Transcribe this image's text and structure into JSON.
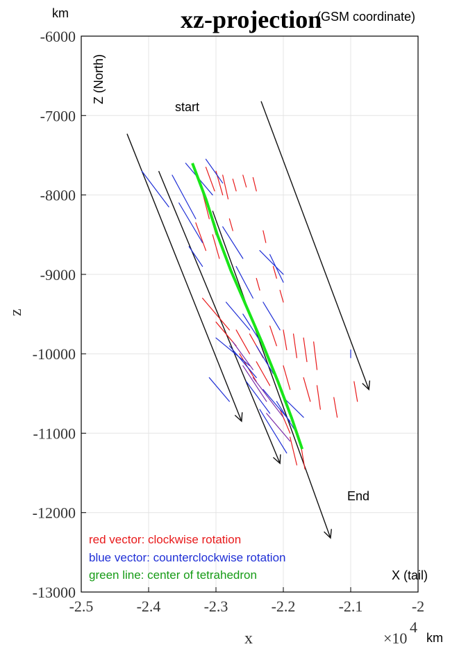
{
  "chart_data": {
    "type": "line",
    "title": "xz-projection",
    "title_note": "(GSM coordinate)",
    "xlabel": "x",
    "ylabel": "z",
    "x_unit": "km",
    "y_unit": "km",
    "x_multiplier": "×10",
    "x_multiplier_exp": "4",
    "xlim": [
      -2.5,
      -2.0
    ],
    "ylim": [
      -13000,
      -6000
    ],
    "xticks": [
      "-2.5",
      "-2.4",
      "-2.3",
      "-2.2",
      "-2.1",
      "-2"
    ],
    "xtick_values": [
      -2.5,
      -2.4,
      -2.3,
      -2.2,
      -2.1,
      -2.0
    ],
    "yticks": [
      "-6000",
      "-7000",
      "-8000",
      "-9000",
      "-10000",
      "-11000",
      "-12000",
      "-13000"
    ],
    "ytick_values": [
      -6000,
      -7000,
      -8000,
      -9000,
      -10000,
      -11000,
      -12000,
      -13000
    ],
    "grid": true,
    "annotations": {
      "z_north": "Z (North)",
      "start": "start",
      "end": "End",
      "x_tail": "X (tail)"
    },
    "legend": [
      {
        "label": "red vector: clockwise rotation",
        "color": "#e8191a"
      },
      {
        "label": "blue vector: counterclockwise rotation",
        "color": "#1f2fd6"
      },
      {
        "label": "green line: center of tetrahedron",
        "color": "#169b16"
      }
    ],
    "colors": {
      "red": "#e8191a",
      "blue": "#1f2fd6",
      "purple": "#7a2aa8",
      "green": "#19e619",
      "black": "#111111",
      "grid": "#e4e4e4"
    },
    "trajectories": [
      {
        "x": [
          -2.432,
          -2.262
        ],
        "z": [
          -7230,
          -10850
        ]
      },
      {
        "x": [
          -2.385,
          -2.205
        ],
        "z": [
          -7700,
          -11380
        ]
      },
      {
        "x": [
          -2.305,
          -2.13
        ],
        "z": [
          -8200,
          -12320
        ]
      },
      {
        "x": [
          -2.233,
          -2.073
        ],
        "z": [
          -6820,
          -10450
        ]
      }
    ],
    "center_line": {
      "x": [
        -2.335,
        -2.315,
        -2.298,
        -2.278,
        -2.255,
        -2.232,
        -2.208,
        -2.188,
        -2.172
      ],
      "z": [
        -7600,
        -8050,
        -8500,
        -8950,
        -9400,
        -9850,
        -10350,
        -10800,
        -11200
      ]
    },
    "red_vectors": [
      {
        "x": [
          -2.315,
          -2.302
        ],
        "z": [
          -7650,
          -7950
        ]
      },
      {
        "x": [
          -2.3,
          -2.29
        ],
        "z": [
          -7700,
          -8000
        ]
      },
      {
        "x": [
          -2.29,
          -2.282
        ],
        "z": [
          -7750,
          -8050
        ]
      },
      {
        "x": [
          -2.275,
          -2.27
        ],
        "z": [
          -7800,
          -7950
        ]
      },
      {
        "x": [
          -2.26,
          -2.255
        ],
        "z": [
          -7750,
          -7900
        ]
      },
      {
        "x": [
          -2.245,
          -2.24
        ],
        "z": [
          -7780,
          -7950
        ]
      },
      {
        "x": [
          -2.322,
          -2.31
        ],
        "z": [
          -7900,
          -8300
        ]
      },
      {
        "x": [
          -2.31,
          -2.3
        ],
        "z": [
          -8200,
          -8500
        ]
      },
      {
        "x": [
          -2.33,
          -2.315
        ],
        "z": [
          -8350,
          -8700
        ]
      },
      {
        "x": [
          -2.305,
          -2.295
        ],
        "z": [
          -8500,
          -8800
        ]
      },
      {
        "x": [
          -2.28,
          -2.275
        ],
        "z": [
          -8300,
          -8450
        ]
      },
      {
        "x": [
          -2.23,
          -2.226
        ],
        "z": [
          -8450,
          -8600
        ]
      },
      {
        "x": [
          -2.215,
          -2.21
        ],
        "z": [
          -8900,
          -9050
        ]
      },
      {
        "x": [
          -2.24,
          -2.235
        ],
        "z": [
          -9050,
          -9200
        ]
      },
      {
        "x": [
          -2.205,
          -2.2
        ],
        "z": [
          -9200,
          -9350
        ]
      },
      {
        "x": [
          -2.32,
          -2.28
        ],
        "z": [
          -9300,
          -9700
        ]
      },
      {
        "x": [
          -2.3,
          -2.27
        ],
        "z": [
          -9600,
          -9900
        ]
      },
      {
        "x": [
          -2.27,
          -2.25
        ],
        "z": [
          -9700,
          -10000
        ]
      },
      {
        "x": [
          -2.25,
          -2.23
        ],
        "z": [
          -9750,
          -10050
        ]
      },
      {
        "x": [
          -2.22,
          -2.21
        ],
        "z": [
          -9650,
          -9900
        ]
      },
      {
        "x": [
          -2.2,
          -2.195
        ],
        "z": [
          -9700,
          -9950
        ]
      },
      {
        "x": [
          -2.185,
          -2.18
        ],
        "z": [
          -9750,
          -10050
        ]
      },
      {
        "x": [
          -2.17,
          -2.165
        ],
        "z": [
          -9800,
          -10100
        ]
      },
      {
        "x": [
          -2.155,
          -2.15
        ],
        "z": [
          -9850,
          -10200
        ]
      },
      {
        "x": [
          -2.265,
          -2.24
        ],
        "z": [
          -10000,
          -10350
        ]
      },
      {
        "x": [
          -2.24,
          -2.22
        ],
        "z": [
          -10100,
          -10400
        ]
      },
      {
        "x": [
          -2.2,
          -2.19
        ],
        "z": [
          -10150,
          -10450
        ]
      },
      {
        "x": [
          -2.17,
          -2.16
        ],
        "z": [
          -10300,
          -10600
        ]
      },
      {
        "x": [
          -2.15,
          -2.145
        ],
        "z": [
          -10400,
          -10700
        ]
      },
      {
        "x": [
          -2.125,
          -2.12
        ],
        "z": [
          -10550,
          -10800
        ]
      },
      {
        "x": [
          -2.095,
          -2.09
        ],
        "z": [
          -10350,
          -10600
        ]
      },
      {
        "x": [
          -2.205,
          -2.19
        ],
        "z": [
          -10700,
          -11000
        ]
      },
      {
        "x": [
          -2.19,
          -2.18
        ],
        "z": [
          -11050,
          -11400
        ]
      },
      {
        "x": [
          -2.175,
          -2.168
        ],
        "z": [
          -11100,
          -11450
        ]
      }
    ],
    "blue_vectors": [
      {
        "x": [
          -2.41,
          -2.37
        ],
        "z": [
          -7700,
          -8150
        ]
      },
      {
        "x": [
          -2.365,
          -2.33
        ],
        "z": [
          -7750,
          -8300
        ]
      },
      {
        "x": [
          -2.345,
          -2.305
        ],
        "z": [
          -7600,
          -8000
        ]
      },
      {
        "x": [
          -2.315,
          -2.29
        ],
        "z": [
          -7550,
          -7850
        ]
      },
      {
        "x": [
          -2.355,
          -2.32
        ],
        "z": [
          -8100,
          -8600
        ]
      },
      {
        "x": [
          -2.34,
          -2.32
        ],
        "z": [
          -8650,
          -8900
        ]
      },
      {
        "x": [
          -2.29,
          -2.26
        ],
        "z": [
          -8400,
          -8800
        ]
      },
      {
        "x": [
          -2.235,
          -2.2
        ],
        "z": [
          -8700,
          -9000
        ]
      },
      {
        "x": [
          -2.22,
          -2.2
        ],
        "z": [
          -8750,
          -9100
        ]
      },
      {
        "x": [
          -2.27,
          -2.245
        ],
        "z": [
          -8900,
          -9300
        ]
      },
      {
        "x": [
          -2.285,
          -2.25
        ],
        "z": [
          -9350,
          -9700
        ]
      },
      {
        "x": [
          -2.26,
          -2.23
        ],
        "z": [
          -9500,
          -9900
        ]
      },
      {
        "x": [
          -2.23,
          -2.205
        ],
        "z": [
          -9350,
          -9700
        ]
      },
      {
        "x": [
          -2.3,
          -2.25
        ],
        "z": [
          -9800,
          -10150
        ]
      },
      {
        "x": [
          -2.28,
          -2.24
        ],
        "z": [
          -9900,
          -10300
        ]
      },
      {
        "x": [
          -2.24,
          -2.215
        ],
        "z": [
          -9900,
          -10250
        ]
      },
      {
        "x": [
          -2.31,
          -2.28
        ],
        "z": [
          -10300,
          -10600
        ]
      },
      {
        "x": [
          -2.255,
          -2.22
        ],
        "z": [
          -10350,
          -10750
        ]
      },
      {
        "x": [
          -2.23,
          -2.19
        ],
        "z": [
          -10450,
          -10850
        ]
      },
      {
        "x": [
          -2.21,
          -2.18
        ],
        "z": [
          -10600,
          -11000
        ]
      },
      {
        "x": [
          -2.235,
          -2.195
        ],
        "z": [
          -10700,
          -11250
        ]
      },
      {
        "x": [
          -2.2,
          -2.17
        ],
        "z": [
          -10550,
          -10800
        ]
      },
      {
        "x": [
          -2.1,
          -2.1
        ],
        "z": [
          -9950,
          -10050
        ]
      }
    ],
    "purple_vectors": [
      {
        "x": [
          -2.275,
          -2.245
        ],
        "z": [
          -9850,
          -10200
        ]
      },
      {
        "x": [
          -2.26,
          -2.225
        ],
        "z": [
          -10150,
          -10600
        ]
      },
      {
        "x": [
          -2.245,
          -2.2
        ],
        "z": [
          -10300,
          -10800
        ]
      },
      {
        "x": [
          -2.225,
          -2.19
        ],
        "z": [
          -10750,
          -11100
        ]
      }
    ]
  }
}
